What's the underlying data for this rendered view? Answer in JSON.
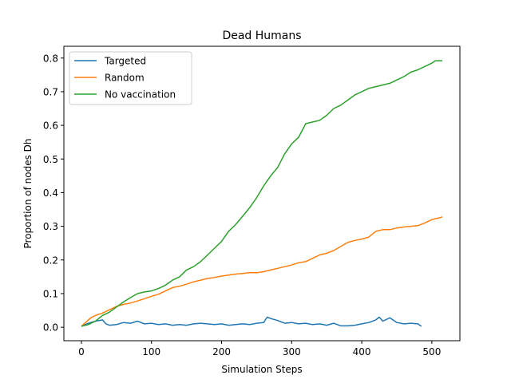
{
  "chart_data": {
    "type": "line",
    "title": "Dead Humans",
    "xlabel": "Simulation Steps",
    "ylabel": "Proportion of nodes Dh",
    "xlim": [
      -25,
      540
    ],
    "ylim": [
      -0.04,
      0.835
    ],
    "xticks": [
      0,
      100,
      200,
      300,
      400,
      500
    ],
    "yticks": [
      0.0,
      0.1,
      0.2,
      0.3,
      0.4,
      0.5,
      0.6,
      0.7,
      0.8
    ],
    "xtick_labels": [
      "0",
      "100",
      "200",
      "300",
      "400",
      "500"
    ],
    "ytick_labels": [
      "0.0",
      "0.1",
      "0.2",
      "0.3",
      "0.4",
      "0.5",
      "0.6",
      "0.7",
      "0.8"
    ],
    "grid": false,
    "legend_position": "top-left",
    "series": [
      {
        "name": "Targeted",
        "color": "#1f77b4",
        "x": [
          0,
          10,
          20,
          30,
          35,
          40,
          50,
          60,
          70,
          80,
          90,
          100,
          110,
          120,
          130,
          140,
          150,
          160,
          170,
          180,
          190,
          200,
          210,
          220,
          230,
          240,
          250,
          260,
          265,
          270,
          280,
          290,
          300,
          310,
          320,
          330,
          340,
          350,
          360,
          370,
          380,
          390,
          400,
          410,
          420,
          425,
          430,
          440,
          450,
          460,
          470,
          480,
          485
        ],
        "y": [
          0.003,
          0.012,
          0.018,
          0.022,
          0.01,
          0.006,
          0.008,
          0.014,
          0.012,
          0.018,
          0.01,
          0.012,
          0.008,
          0.01,
          0.006,
          0.008,
          0.006,
          0.01,
          0.012,
          0.01,
          0.008,
          0.01,
          0.006,
          0.008,
          0.01,
          0.008,
          0.012,
          0.014,
          0.03,
          0.026,
          0.02,
          0.012,
          0.014,
          0.01,
          0.012,
          0.008,
          0.01,
          0.006,
          0.012,
          0.004,
          0.004,
          0.006,
          0.01,
          0.014,
          0.022,
          0.03,
          0.018,
          0.028,
          0.014,
          0.01,
          0.012,
          0.01,
          0.003
        ]
      },
      {
        "name": "Random",
        "color": "#ff7f0e",
        "x": [
          0,
          5,
          10,
          15,
          20,
          30,
          40,
          50,
          60,
          70,
          80,
          90,
          100,
          110,
          120,
          130,
          140,
          150,
          160,
          170,
          180,
          190,
          200,
          210,
          220,
          230,
          240,
          250,
          260,
          270,
          280,
          290,
          300,
          310,
          320,
          330,
          340,
          350,
          360,
          370,
          380,
          390,
          400,
          410,
          420,
          430,
          440,
          450,
          460,
          470,
          480,
          490,
          500,
          510,
          515
        ],
        "y": [
          0.003,
          0.012,
          0.022,
          0.03,
          0.035,
          0.042,
          0.052,
          0.062,
          0.068,
          0.072,
          0.078,
          0.085,
          0.092,
          0.098,
          0.108,
          0.118,
          0.122,
          0.128,
          0.135,
          0.14,
          0.145,
          0.148,
          0.152,
          0.155,
          0.158,
          0.16,
          0.162,
          0.162,
          0.165,
          0.17,
          0.175,
          0.18,
          0.185,
          0.192,
          0.195,
          0.205,
          0.215,
          0.22,
          0.228,
          0.24,
          0.252,
          0.258,
          0.262,
          0.268,
          0.285,
          0.29,
          0.29,
          0.295,
          0.298,
          0.3,
          0.302,
          0.31,
          0.32,
          0.325,
          0.328
        ]
      },
      {
        "name": "No vaccination",
        "color": "#2ca02c",
        "x": [
          0,
          10,
          20,
          30,
          40,
          50,
          60,
          70,
          80,
          90,
          100,
          110,
          120,
          130,
          140,
          150,
          160,
          170,
          180,
          190,
          200,
          210,
          220,
          230,
          240,
          250,
          260,
          270,
          280,
          290,
          300,
          310,
          320,
          330,
          340,
          350,
          360,
          370,
          380,
          390,
          400,
          410,
          420,
          430,
          440,
          450,
          460,
          470,
          480,
          490,
          500,
          505,
          515
        ],
        "y": [
          0.003,
          0.008,
          0.018,
          0.035,
          0.045,
          0.06,
          0.075,
          0.088,
          0.1,
          0.105,
          0.108,
          0.115,
          0.125,
          0.14,
          0.15,
          0.17,
          0.18,
          0.195,
          0.215,
          0.235,
          0.255,
          0.285,
          0.305,
          0.33,
          0.355,
          0.385,
          0.42,
          0.45,
          0.475,
          0.515,
          0.545,
          0.565,
          0.605,
          0.61,
          0.615,
          0.63,
          0.65,
          0.66,
          0.675,
          0.69,
          0.7,
          0.71,
          0.715,
          0.72,
          0.725,
          0.735,
          0.745,
          0.758,
          0.765,
          0.775,
          0.785,
          0.792,
          0.792
        ]
      }
    ]
  }
}
